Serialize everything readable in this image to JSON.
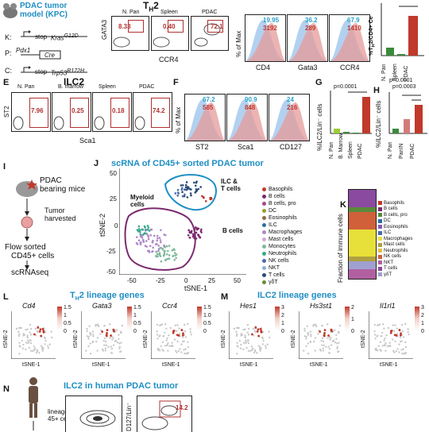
{
  "panelD": {
    "title_line1": "PDAC tumor",
    "title_line2": "model (KPC)",
    "k_label": "K:",
    "p_label": "P:",
    "c_label": "C:",
    "k_stop": "stop",
    "k_gene": "Kras",
    "k_sup": "G12D",
    "p_gene": "Pdx1",
    "p_cre": "Cre",
    "c_stop": "stop",
    "c_gene": "Trp53",
    "c_sup": "R172H"
  },
  "panelTop": {
    "title": "T",
    "title_sub": "H",
    "title_num": "2",
    "gata3": "GATA3",
    "ccr4": "CCR4",
    "n_pan": "N. Pan",
    "spleen": "Spleen",
    "pdac": "PDAC",
    "g1": "8.33",
    "g2": "0.40",
    "g3": "72.1",
    "pct_max": "% of Max",
    "hist": [
      {
        "blue": "19.95",
        "red": "3192",
        "x": "CD4"
      },
      {
        "blue": "36.2",
        "red": "289",
        "x": "Gata3"
      },
      {
        "blue": "67.9",
        "red": "1410",
        "x": "CCR4"
      }
    ],
    "bar_ylabel": "%T",
    "bar_ylabel_sub": "H",
    "bar_ylabel_rest": "2/CD4+ Ce",
    "bar_cats": [
      "N. Pan",
      "Spleen",
      "PDAC"
    ]
  },
  "panelE": {
    "letter": "E",
    "title": "ILC2",
    "st2": "ST2",
    "sca1": "Sca1",
    "cols": [
      "N. Pan",
      "B. marrow",
      "Spleen",
      "PDAC"
    ],
    "vals": [
      "7.96",
      "0.25",
      "0.18",
      "74.2"
    ]
  },
  "panelF": {
    "letter": "F",
    "pct_max": "% of Max",
    "hist": [
      {
        "blue": "67.2",
        "red": "585",
        "x": "ST2"
      },
      {
        "blue": "90.9",
        "red": "848",
        "x": "Sca1"
      },
      {
        "blue": "24",
        "red": "216",
        "x": "CD127"
      }
    ]
  },
  "panelG": {
    "letter": "G",
    "pval": "p=0.0001",
    "ylabel": "%ILC2/Lin⁻ cells",
    "cats": [
      "N. Pan",
      "B. Marrow",
      "Spleen",
      "PDAC"
    ]
  },
  "panelH": {
    "letter": "H",
    "pval1": "p=0.0001",
    "pval2": "p=0.0003",
    "ylabel": "%ILC2/Lin⁻ cells",
    "cats": [
      "N. Pan",
      "PanIN",
      "PDAC"
    ]
  },
  "panelI": {
    "letter": "I",
    "t1": "PDAC",
    "t2": "bearing mice",
    "t3": "Tumor",
    "t4": "harvested",
    "t5": "Flow sorted",
    "t6": "CD45+ cells",
    "t7": "scRNAseq"
  },
  "panelJ": {
    "letter": "J",
    "title": "scRNA of CD45+ sorted PDAC tumor",
    "myeloid": "Myeloid",
    "myeloid2": "cells",
    "ilc": "ILC &",
    "ilc2": "T cells",
    "bcells": "B cells",
    "xlabel": "tSNE-1",
    "ylabel": "tSNE-2",
    "xticks": [
      "-50",
      "-25",
      "0",
      "25",
      "50"
    ],
    "yticks": [
      "50",
      "25",
      "0",
      "-25",
      "-50"
    ],
    "legend": [
      {
        "name": "Basophils",
        "color": "#c0392b"
      },
      {
        "name": "B cells",
        "color": "#7b2a6e"
      },
      {
        "name": "B cells, pro",
        "color": "#a04a8a"
      },
      {
        "name": "DC",
        "color": "#9b9b2a"
      },
      {
        "name": "Eosinophils",
        "color": "#8c6a4a"
      },
      {
        "name": "ILC",
        "color": "#2c6f9e"
      },
      {
        "name": "Macrophages",
        "color": "#b088c8"
      },
      {
        "name": "Mast cells",
        "color": "#d4a7d6"
      },
      {
        "name": "Monocytes",
        "color": "#7fb99a"
      },
      {
        "name": "Neutrophils",
        "color": "#3aa88a"
      },
      {
        "name": "NK cells",
        "color": "#4a6ba8"
      },
      {
        "name": "NKT",
        "color": "#8ab0d8"
      },
      {
        "name": "T cells",
        "color": "#2a4a7a"
      },
      {
        "name": "γδT",
        "color": "#6a8a3a"
      }
    ]
  },
  "panelK": {
    "letter": "K",
    "ylabel": "Fraction of immune cells",
    "legend": [
      {
        "name": "Basophils",
        "color": "#c0392b"
      },
      {
        "name": "B cells",
        "color": "#7b2a6e"
      },
      {
        "name": "B cells, pro",
        "color": "#5a8a3a"
      },
      {
        "name": "DC",
        "color": "#2c6f9e"
      },
      {
        "name": "Eosinophils",
        "color": "#8a5ab0"
      },
      {
        "name": "ILC",
        "color": "#4a6ba8"
      },
      {
        "name": "Macrophages",
        "color": "#e8e03a"
      },
      {
        "name": "Mast cells",
        "color": "#b0a040"
      },
      {
        "name": "Neutrophils",
        "color": "#e0c040"
      },
      {
        "name": "NK cells",
        "color": "#d0603a"
      },
      {
        "name": "NKT",
        "color": "#b060a0"
      },
      {
        "name": "T cells",
        "color": "#8a4aa0"
      },
      {
        "name": "γδT",
        "color": "#a0a0d0"
      }
    ]
  },
  "panelL": {
    "letter": "L",
    "title_pre": "T",
    "title_sub": "H",
    "title_post": "2 lineage genes",
    "genes": [
      "Cd4",
      "Gata3",
      "Ccr4"
    ],
    "scales": [
      [
        "1.5",
        "1",
        "0.5",
        "0"
      ],
      [
        "1.5",
        "1",
        "0.5",
        "0"
      ],
      [
        "1.5",
        "1.0",
        "0.5",
        "0"
      ]
    ],
    "xlabel": "tSNE-1",
    "ylabel": "tSNE-2"
  },
  "panelM": {
    "letter": "M",
    "title": "ILC2 lineage genes",
    "genes": [
      "Hes1",
      "Hs3st1",
      "Il1rl1"
    ],
    "scales": [
      [
        "3",
        "2",
        "1",
        "0"
      ],
      [
        "2",
        "1",
        "0"
      ],
      [
        "3",
        "2",
        "1",
        "0"
      ]
    ],
    "xlabel": "tSNE-1",
    "ylabel": "tSNE-2"
  },
  "panelN": {
    "letter": "N",
    "title": "ILC2 in human PDAC tumor",
    "ylabel1": "lineage",
    "ylabel2": "45+ cells",
    "ylabel3": "D127/Lin⁻",
    "gate": "14.2"
  }
}
